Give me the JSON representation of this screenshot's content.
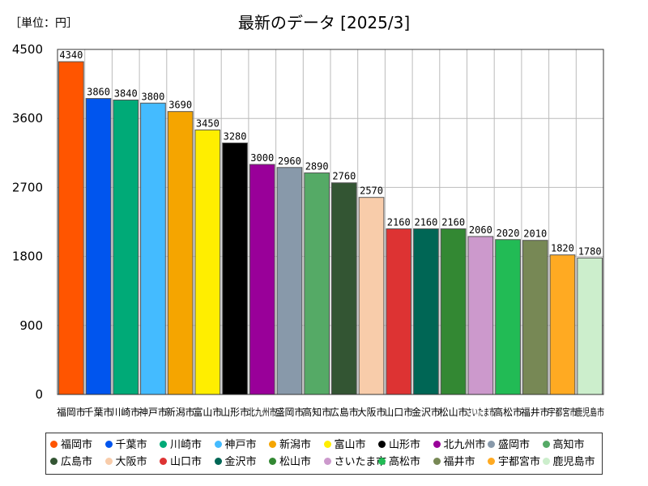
{
  "unit_label": "［単位：円］",
  "chart_data": {
    "type": "bar",
    "title": "最新のデータ [2025/3]",
    "xlabel": "",
    "ylabel": "",
    "ylim": [
      0,
      4500
    ],
    "yticks": [
      "0",
      "900",
      "1800",
      "2700",
      "3600",
      "4500"
    ],
    "grid": true,
    "categories": [
      "福岡市",
      "千葉市",
      "川崎市",
      "神戸市",
      "新潟市",
      "富山市",
      "山形市",
      "北九州市",
      "盛岡市",
      "高知市",
      "広島市",
      "大阪市",
      "山口市",
      "金沢市",
      "松山市",
      "さいたま市",
      "高松市",
      "福井市",
      "宇都宮市",
      "鹿児島市"
    ],
    "values": [
      4340,
      3860,
      3840,
      3800,
      3690,
      3450,
      3280,
      3000,
      2960,
      2890,
      2760,
      2570,
      2160,
      2160,
      2160,
      2060,
      2020,
      2010,
      1820,
      1780
    ],
    "colors": [
      "#ff5500",
      "#0055ee",
      "#00aa77",
      "#44bbff",
      "#f5a500",
      "#ffee00",
      "#000000",
      "#990099",
      "#8899aa",
      "#55aa66",
      "#335533",
      "#f8ccaa",
      "#dd3333",
      "#006655",
      "#338833",
      "#cc99cc",
      "#22bb55",
      "#778855",
      "#ffaa22",
      "#cceecc"
    ],
    "legend": "bottom"
  }
}
